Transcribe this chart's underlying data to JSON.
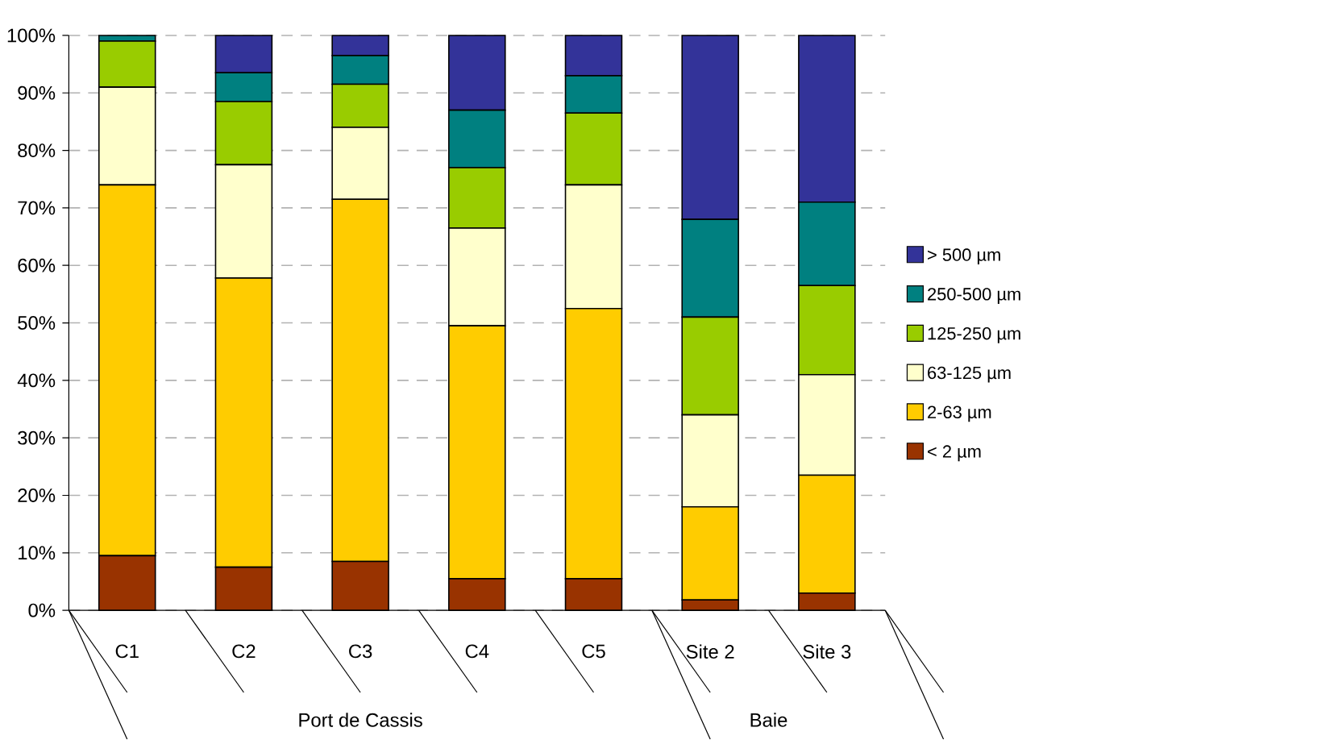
{
  "chart_data": {
    "type": "bar",
    "stacked": true,
    "categories": [
      "C1",
      "C2",
      "C3",
      "C4",
      "C5",
      "Site 2",
      "Site 3"
    ],
    "series": [
      {
        "name": "< 2 µm",
        "color": "#993300",
        "values": [
          9.5,
          7.5,
          8.5,
          5.5,
          5.5,
          1.8,
          3
        ]
      },
      {
        "name": "2-63 µm",
        "color": "#ffcc00",
        "values": [
          64.5,
          50.3,
          63,
          44,
          47,
          16.2,
          20.5
        ]
      },
      {
        "name": "63-125 µm",
        "color": "#ffffcc",
        "values": [
          17,
          19.7,
          12.5,
          17,
          21.5,
          16,
          17.5
        ]
      },
      {
        "name": "125-250 µm",
        "color": "#99cc00",
        "values": [
          8,
          11,
          7.5,
          10.5,
          12.5,
          17,
          15.5
        ]
      },
      {
        "name": "250-500 µm",
        "color": "#008080",
        "values": [
          1,
          5,
          5,
          10,
          6.5,
          17,
          14.5
        ]
      },
      {
        "name": "> 500 µm",
        "color": "#333399",
        "values": [
          0,
          6.5,
          3.5,
          13,
          7,
          32,
          29
        ]
      }
    ],
    "ylim": [
      0,
      100
    ],
    "yticks": [
      {
        "value": 0,
        "label": "0%"
      },
      {
        "value": 10,
        "label": "10%"
      },
      {
        "value": 20,
        "label": "20%"
      },
      {
        "value": 30,
        "label": "30%"
      },
      {
        "value": 40,
        "label": "40%"
      },
      {
        "value": 50,
        "label": "50%"
      },
      {
        "value": 60,
        "label": "60%"
      },
      {
        "value": 70,
        "label": "70%"
      },
      {
        "value": 80,
        "label": "80%"
      },
      {
        "value": 90,
        "label": "90%"
      },
      {
        "value": 100,
        "label": "100%"
      }
    ],
    "grid": "y",
    "legend": "right",
    "annotations": [
      "Port de Cassis",
      "Baie"
    ]
  }
}
